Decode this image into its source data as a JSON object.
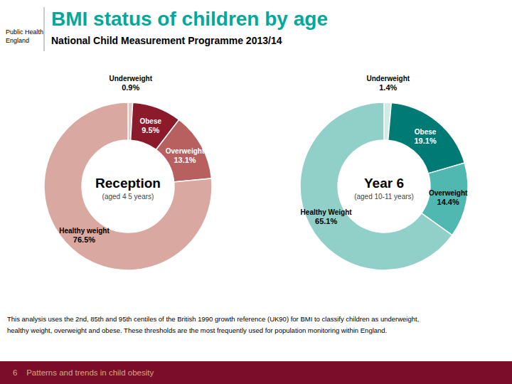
{
  "title": "BMI status of children by age",
  "subtitle": "National Child Measurement Programme 2013/14",
  "annotations": [
    "Public Health",
    "England",
    "This analysis uses the 2nd, 85th and 95th centiles of the British 1990 growth reference (UK90) for BMI to classify children as underweight,",
    "healthy weight, overweight and obese.  These thresholds are the most frequently used for population monitoring within England.",
    "6    Patterns and trends in child obesity"
  ],
  "chart_data": [
    {
      "type": "pie",
      "title": "Reception",
      "subtitle": "(aged 4 5 years)",
      "categories": [
        "Underweight",
        "Obese",
        "Overweight",
        "Healthy weight"
      ],
      "values": [
        0.9,
        9.5,
        13.1,
        76.5
      ],
      "value_labels": [
        "0.9%",
        "9.5%",
        "13.1%",
        "76.5%"
      ],
      "colors": [
        "#e8c5c0",
        "#8B1A2A",
        "#b86060",
        "#d9a8a0"
      ],
      "data_labels": true
    },
    {
      "type": "pie",
      "title": "Year 6",
      "subtitle": "(aged 10-11 years)",
      "categories": [
        "Underweight",
        "Obese",
        "Overweight",
        "Healthy Weight"
      ],
      "values": [
        1.4,
        19.1,
        14.4,
        65.1
      ],
      "value_labels": [
        "1.4%",
        "19.1%",
        "14.4%",
        "65.1%"
      ],
      "colors": [
        "#d0ece8",
        "#007A75",
        "#50b8b0",
        "#90d0c8"
      ],
      "data_labels": true
    }
  ]
}
